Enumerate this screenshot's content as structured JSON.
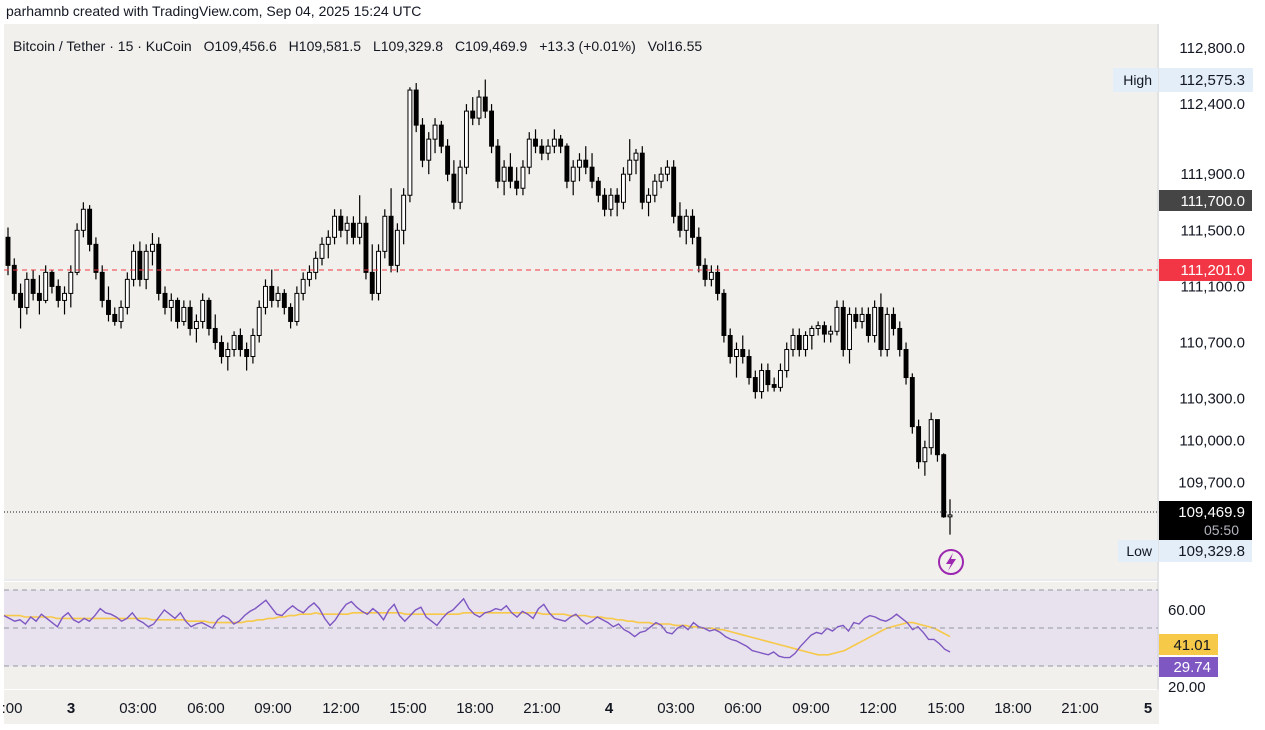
{
  "header": {
    "attribution": "parhamnb created with TradingView.com, Sep 04, 2025 15:24 UTC"
  },
  "legend": {
    "symbol": "Bitcoin / Tether · 15 · KuCoin",
    "open": "O109,456.6",
    "high": "H109,581.5",
    "low": "L109,329.8",
    "close": "C109,469.9",
    "change": "+13.3 (+0.01%)",
    "volume": "Vol16.55"
  },
  "markers": {
    "high_label": "High",
    "high_value": "112,575.3",
    "low_label": "Low",
    "low_value": "109,329.8",
    "alert_level": "111,700.0",
    "red_line": "111,201.0",
    "last_price": "109,469.9",
    "countdown": "05:50"
  },
  "rsi": {
    "level_label": "60.00",
    "bottom_label": "20.00",
    "ma_value": "41.01",
    "rsi_value": "29.74",
    "values": [
      56,
      54,
      52,
      53,
      50,
      55,
      52,
      57,
      54,
      51,
      48,
      55,
      58,
      53,
      51,
      54,
      52,
      56,
      61,
      58,
      57,
      55,
      52,
      54,
      58,
      53,
      51,
      48,
      50,
      55,
      60,
      57,
      54,
      58,
      52,
      48,
      50,
      51,
      49,
      47,
      53,
      56,
      54,
      50,
      52,
      56,
      59,
      61,
      64,
      67,
      62,
      57,
      56,
      60,
      63,
      60,
      58,
      62,
      65,
      61,
      54,
      49,
      53,
      59,
      64,
      66,
      62,
      59,
      57,
      61,
      58,
      53,
      60,
      64,
      56,
      52,
      56,
      60,
      62,
      55,
      52,
      49,
      54,
      58,
      60,
      64,
      68,
      61,
      57,
      55,
      58,
      59,
      61,
      60,
      63,
      58,
      55,
      59,
      57,
      54,
      61,
      64,
      58,
      54,
      53,
      52,
      55,
      57,
      53,
      50,
      52,
      55,
      53,
      51,
      48,
      50,
      46,
      44,
      41,
      44,
      45,
      48,
      51,
      49,
      44,
      43,
      47,
      49,
      46,
      51,
      48,
      47,
      45,
      46,
      44,
      41,
      39,
      38,
      36,
      34,
      31,
      30,
      29,
      28,
      30,
      27,
      26,
      26,
      29,
      34,
      38,
      42,
      44,
      43,
      47,
      45,
      48,
      49,
      45,
      51,
      50,
      54,
      56,
      55,
      53,
      52,
      54,
      57,
      54,
      51,
      46,
      48,
      44,
      39,
      39,
      36,
      32,
      30
    ],
    "ma": [
      56,
      56,
      56,
      56,
      55,
      55,
      55,
      55,
      55,
      55,
      54,
      54,
      54,
      54,
      54,
      54,
      54,
      54,
      54,
      54,
      54,
      54,
      54,
      54,
      54,
      54,
      54,
      54,
      53,
      53,
      53,
      53,
      53,
      53,
      53,
      52,
      52,
      52,
      52,
      51,
      51,
      51,
      51,
      51,
      51,
      51,
      52,
      52,
      53,
      53,
      54,
      54,
      55,
      55,
      56,
      56,
      57,
      57,
      57,
      58,
      57,
      57,
      57,
      57,
      57,
      57,
      58,
      58,
      58,
      58,
      58,
      58,
      58,
      58,
      58,
      58,
      57,
      57,
      57,
      57,
      57,
      57,
      57,
      57,
      57,
      57,
      57,
      58,
      58,
      58,
      58,
      58,
      58,
      58,
      58,
      58,
      58,
      58,
      58,
      58,
      58,
      58,
      57,
      57,
      57,
      57,
      57,
      56,
      56,
      56,
      56,
      55,
      55,
      55,
      54,
      54,
      53,
      53,
      52,
      52,
      51,
      51,
      51,
      50,
      50,
      50,
      50,
      49,
      49,
      49,
      48,
      48,
      47,
      47,
      47,
      46,
      46,
      45,
      44,
      43,
      42,
      41,
      40,
      39,
      38,
      37,
      36,
      35,
      34,
      33,
      32,
      31,
      30,
      29,
      28,
      28,
      28,
      29,
      30,
      31,
      33,
      35,
      37,
      39,
      41,
      43,
      45,
      47,
      48,
      49,
      50,
      51,
      51,
      50,
      49,
      48,
      47,
      45,
      43,
      41
    ]
  },
  "x_axis": {
    "labels": [
      ":00",
      "3",
      "03:00",
      "06:00",
      "09:00",
      "12:00",
      "15:00",
      "18:00",
      "21:00",
      "4",
      "03:00",
      "06:00",
      "09:00",
      "12:00",
      "15:00",
      "18:00",
      "21:00",
      "5"
    ]
  },
  "colors": {
    "up": "#ffffff",
    "down": "#000000",
    "wick": "#000000",
    "alert_line": "#f23645",
    "rsi_line": "#7e57c2",
    "rsi_ma": "#f7c948",
    "rsi_band": "#e8e1ee",
    "chart_bg": "#f2f0ec",
    "axis_bg": "#ffffff"
  },
  "chart_data": {
    "type": "candlestick",
    "title": "Bitcoin / Tether · 15 · KuCoin",
    "ylabel": "",
    "ylim": [
      109100,
      113000
    ],
    "y_ticks": [
      112800,
      112400,
      111900,
      111500,
      111100,
      110700,
      110300,
      110000,
      109700
    ],
    "candles_ohlc": [
      [
        111450,
        111520,
        111180,
        111250
      ],
      [
        111250,
        111300,
        111000,
        111050
      ],
      [
        111050,
        111120,
        110800,
        110950
      ],
      [
        110950,
        111200,
        110900,
        111150
      ],
      [
        111150,
        111220,
        111000,
        111050
      ],
      [
        111050,
        111180,
        110900,
        111000
      ],
      [
        111000,
        111250,
        110980,
        111200
      ],
      [
        111200,
        111220,
        111050,
        111100
      ],
      [
        111100,
        111150,
        110950,
        111000
      ],
      [
        111000,
        111100,
        110900,
        111050
      ],
      [
        111050,
        111250,
        110950,
        111200
      ],
      [
        111200,
        111550,
        111180,
        111500
      ],
      [
        111500,
        111700,
        111450,
        111650
      ],
      [
        111650,
        111680,
        111350,
        111400
      ],
      [
        111400,
        111450,
        111150,
        111200
      ],
      [
        111200,
        111250,
        110950,
        111000
      ],
      [
        111000,
        111100,
        110850,
        110900
      ],
      [
        110900,
        110950,
        110820,
        110850
      ],
      [
        110850,
        111000,
        110800,
        110950
      ],
      [
        110950,
        111200,
        110900,
        111150
      ],
      [
        111150,
        111400,
        111100,
        111350
      ],
      [
        111350,
        111420,
        111100,
        111150
      ],
      [
        111150,
        111400,
        111080,
        111350
      ],
      [
        111350,
        111480,
        111250,
        111400
      ],
      [
        111400,
        111450,
        111000,
        111050
      ],
      [
        111050,
        111100,
        110900,
        110950
      ],
      [
        110950,
        111050,
        110850,
        111000
      ],
      [
        111000,
        111020,
        110800,
        110850
      ],
      [
        110850,
        111000,
        110820,
        110950
      ],
      [
        110950,
        111000,
        110750,
        110800
      ],
      [
        110800,
        110900,
        110700,
        110850
      ],
      [
        110850,
        111050,
        110800,
        111000
      ],
      [
        111000,
        111020,
        110750,
        110800
      ],
      [
        110800,
        110900,
        110650,
        110700
      ],
      [
        110700,
        110750,
        110550,
        110600
      ],
      [
        110600,
        110700,
        110500,
        110650
      ],
      [
        110650,
        110780,
        110600,
        110750
      ],
      [
        110750,
        110800,
        110600,
        110650
      ],
      [
        110650,
        110700,
        110500,
        110600
      ],
      [
        110600,
        110800,
        110550,
        110750
      ],
      [
        110750,
        111000,
        110700,
        110950
      ],
      [
        110950,
        111150,
        110900,
        111100
      ],
      [
        111100,
        111220,
        110950,
        111000
      ],
      [
        111000,
        111100,
        110950,
        111050
      ],
      [
        111050,
        111080,
        110900,
        110950
      ],
      [
        110950,
        110980,
        110800,
        110850
      ],
      [
        110850,
        111100,
        110820,
        111050
      ],
      [
        111050,
        111200,
        111000,
        111150
      ],
      [
        111150,
        111250,
        111100,
        111200
      ],
      [
        111200,
        111350,
        111150,
        111300
      ],
      [
        111300,
        111450,
        111250,
        111400
      ],
      [
        111400,
        111500,
        111300,
        111450
      ],
      [
        111450,
        111650,
        111400,
        111600
      ],
      [
        111600,
        111650,
        111450,
        111500
      ],
      [
        111500,
        111600,
        111400,
        111550
      ],
      [
        111550,
        111600,
        111400,
        111450
      ],
      [
        111450,
        111750,
        111400,
        111550
      ],
      [
        111550,
        111600,
        111150,
        111200
      ],
      [
        111200,
        111400,
        111000,
        111050
      ],
      [
        111050,
        111400,
        111000,
        111350
      ],
      [
        111350,
        111650,
        111300,
        111600
      ],
      [
        111600,
        111800,
        111200,
        111250
      ],
      [
        111250,
        111550,
        111200,
        111500
      ],
      [
        111500,
        111800,
        111400,
        111750
      ],
      [
        111750,
        112520,
        111700,
        112500
      ],
      [
        112500,
        112550,
        112200,
        112250
      ],
      [
        112250,
        112300,
        111950,
        112000
      ],
      [
        112000,
        112200,
        111900,
        112150
      ],
      [
        112150,
        112300,
        112050,
        112250
      ],
      [
        112250,
        112280,
        112050,
        112100
      ],
      [
        112100,
        112150,
        111850,
        111900
      ],
      [
        111900,
        112000,
        111650,
        111700
      ],
      [
        111700,
        112000,
        111650,
        111950
      ],
      [
        111950,
        112400,
        111900,
        112350
      ],
      [
        112350,
        112450,
        112250,
        112300
      ],
      [
        112300,
        112500,
        112250,
        112450
      ],
      [
        112450,
        112575,
        112300,
        112350
      ],
      [
        112350,
        112400,
        112050,
        112100
      ],
      [
        112100,
        112150,
        111800,
        111850
      ],
      [
        111850,
        112000,
        111750,
        111950
      ],
      [
        111950,
        112050,
        111800,
        111850
      ],
      [
        111850,
        111950,
        111750,
        111800
      ],
      [
        111800,
        112000,
        111750,
        111950
      ],
      [
        111950,
        112200,
        111900,
        112150
      ],
      [
        112150,
        112220,
        112050,
        112100
      ],
      [
        112100,
        112150,
        112000,
        112050
      ],
      [
        112050,
        112150,
        112000,
        112100
      ],
      [
        112100,
        112220,
        112050,
        112150
      ],
      [
        112150,
        112180,
        112050,
        112100
      ],
      [
        112100,
        112120,
        111800,
        111850
      ],
      [
        111850,
        112000,
        111750,
        111950
      ],
      [
        111950,
        112050,
        111850,
        112000
      ],
      [
        112000,
        112100,
        111900,
        111950
      ],
      [
        111950,
        112050,
        111800,
        111850
      ],
      [
        111850,
        111880,
        111700,
        111750
      ],
      [
        111750,
        111800,
        111600,
        111650
      ],
      [
        111650,
        111800,
        111600,
        111750
      ],
      [
        111750,
        111800,
        111600,
        111700
      ],
      [
        111700,
        111950,
        111650,
        111900
      ],
      [
        111900,
        112150,
        111850,
        112000
      ],
      [
        112000,
        112080,
        111900,
        112050
      ],
      [
        112050,
        112100,
        111650,
        111700
      ],
      [
        111700,
        111800,
        111600,
        111750
      ],
      [
        111750,
        111900,
        111700,
        111850
      ],
      [
        111850,
        111950,
        111800,
        111900
      ],
      [
        111900,
        112000,
        111850,
        111950
      ],
      [
        111950,
        112000,
        111550,
        111600
      ],
      [
        111600,
        111700,
        111450,
        111500
      ],
      [
        111500,
        111650,
        111400,
        111600
      ],
      [
        111600,
        111650,
        111400,
        111450
      ],
      [
        111450,
        111520,
        111200,
        111250
      ],
      [
        111250,
        111300,
        111100,
        111150
      ],
      [
        111150,
        111250,
        111100,
        111200
      ],
      [
        111200,
        111250,
        111000,
        111050
      ],
      [
        111050,
        111080,
        110700,
        110750
      ],
      [
        110750,
        110800,
        110550,
        110600
      ],
      [
        110600,
        110700,
        110450,
        110650
      ],
      [
        110650,
        110750,
        110550,
        110600
      ],
      [
        110600,
        110650,
        110400,
        110450
      ],
      [
        110450,
        110500,
        110300,
        110350
      ],
      [
        110350,
        110550,
        110300,
        110500
      ],
      [
        110500,
        110550,
        110350,
        110400
      ],
      [
        110400,
        110450,
        110350,
        110380
      ],
      [
        110380,
        110550,
        110350,
        110500
      ],
      [
        110500,
        110700,
        110450,
        110650
      ],
      [
        110650,
        110800,
        110600,
        110750
      ],
      [
        110750,
        110800,
        110600,
        110650
      ],
      [
        110650,
        110780,
        110600,
        110750
      ],
      [
        110750,
        110820,
        110650,
        110800
      ],
      [
        110800,
        110850,
        110750,
        110820
      ],
      [
        110820,
        110850,
        110700,
        110760
      ],
      [
        110760,
        110820,
        110700,
        110780
      ],
      [
        110780,
        111000,
        110750,
        110950
      ],
      [
        110950,
        111000,
        110600,
        110650
      ],
      [
        110650,
        110950,
        110550,
        110900
      ],
      [
        110900,
        110950,
        110800,
        110850
      ],
      [
        110850,
        110950,
        110800,
        110900
      ],
      [
        110900,
        110950,
        110700,
        110750
      ],
      [
        110750,
        111000,
        110700,
        110950
      ],
      [
        110950,
        111050,
        110600,
        110650
      ],
      [
        110650,
        110950,
        110600,
        110900
      ],
      [
        110900,
        110950,
        110750,
        110800
      ],
      [
        110800,
        110850,
        110600,
        110650
      ],
      [
        110650,
        110700,
        110400,
        110450
      ],
      [
        110450,
        110480,
        110050,
        110100
      ],
      [
        110100,
        110150,
        109800,
        109850
      ],
      [
        109850,
        110000,
        109750,
        109950
      ],
      [
        109950,
        110200,
        109900,
        110150
      ],
      [
        110150,
        110150,
        109850,
        109900
      ],
      [
        109900,
        109910,
        109450,
        109457
      ],
      [
        109457,
        109582,
        109330,
        109470
      ]
    ]
  }
}
